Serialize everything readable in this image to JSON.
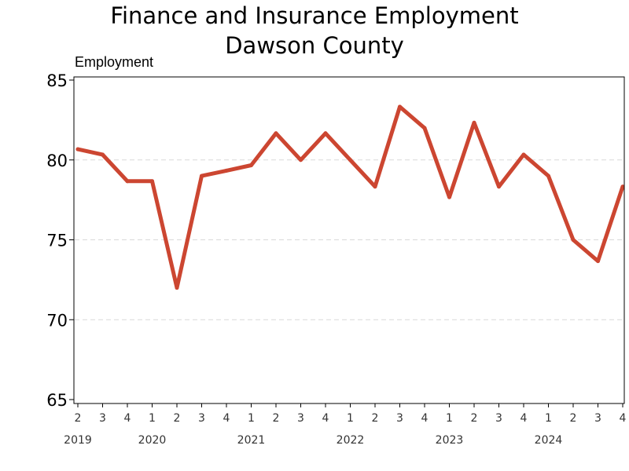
{
  "chart_data": {
    "type": "line",
    "title": [
      "Finance and Insurance Employment",
      "Dawson County"
    ],
    "ylabel": "Employment",
    "xlabel": "",
    "ylim": [
      65,
      85
    ],
    "yticks": [
      65,
      70,
      75,
      80,
      85
    ],
    "grid": true,
    "categories": [
      "2",
      "3",
      "4",
      "1",
      "2",
      "3",
      "4",
      "1",
      "2",
      "3",
      "4",
      "1",
      "2",
      "3",
      "4",
      "1",
      "2",
      "3",
      "4",
      "1",
      "2",
      "3",
      "4"
    ],
    "year_labels": [
      {
        "label": "2019",
        "index": 0
      },
      {
        "label": "2020",
        "index": 3
      },
      {
        "label": "2021",
        "index": 7
      },
      {
        "label": "2022",
        "index": 11
      },
      {
        "label": "2023",
        "index": 15
      },
      {
        "label": "2024",
        "index": 19
      }
    ],
    "series": [
      {
        "color": "#cc4631",
        "values": [
          80.67,
          80.33,
          78.67,
          78.67,
          72.0,
          79.0,
          79.33,
          79.67,
          81.67,
          80.0,
          81.67,
          80.0,
          78.33,
          83.33,
          82.0,
          77.67,
          82.33,
          78.33,
          80.33,
          79.0,
          75.0,
          73.67,
          78.33
        ]
      }
    ]
  }
}
